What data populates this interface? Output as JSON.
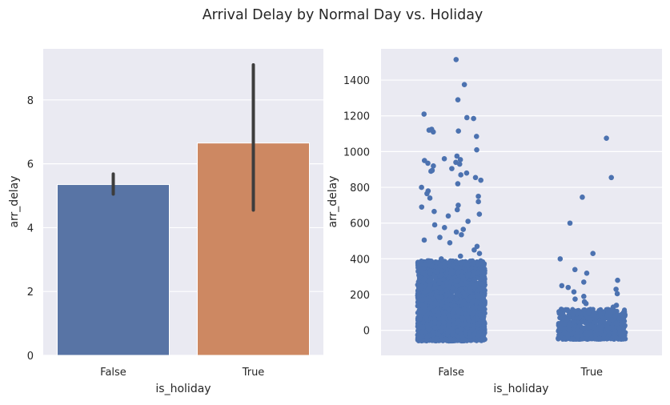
{
  "figure": {
    "title": "Arrival Delay by Normal Day vs. Holiday"
  },
  "chart_data": [
    {
      "type": "bar",
      "xlabel": "is_holiday",
      "ylabel": "arr_delay",
      "categories": [
        "False",
        "True"
      ],
      "values": [
        5.35,
        6.65
      ],
      "error_bars": [
        [
          5.05,
          5.68
        ],
        [
          4.55,
          9.1
        ]
      ],
      "colors": [
        "#5874a5",
        "#cd8862"
      ],
      "ylim": [
        0,
        9.6
      ],
      "yticks": [
        0,
        2,
        4,
        6,
        8
      ],
      "grid": true
    },
    {
      "type": "scatter",
      "subtype": "strip",
      "xlabel": "is_holiday",
      "ylabel": "arr_delay",
      "categories": [
        "False",
        "True"
      ],
      "color": "#4c72b0",
      "ylim": [
        -140,
        1575
      ],
      "yticks": [
        0,
        200,
        400,
        600,
        800,
        1000,
        1200,
        1400
      ],
      "grid": true,
      "series": [
        {
          "category": "False",
          "dense_band": [
            -60,
            390
          ],
          "outliers": [
            1515,
            1375,
            1290,
            1210,
            1190,
            1185,
            1125,
            1120,
            1115,
            1110,
            1085,
            1010,
            975,
            960,
            955,
            950,
            940,
            935,
            930,
            920,
            905,
            895,
            890,
            880,
            870,
            855,
            840,
            820,
            800,
            780,
            765,
            750,
            740,
            720,
            700,
            690,
            675,
            665,
            650,
            640,
            610,
            590,
            575,
            565,
            550,
            535,
            520,
            505,
            490,
            470,
            450,
            430,
            415,
            400
          ]
        },
        {
          "category": "True",
          "dense_band": [
            -50,
            120
          ],
          "outliers": [
            1075,
            855,
            745,
            600,
            430,
            400,
            340,
            320,
            280,
            270,
            250,
            240,
            230,
            215,
            205,
            190,
            175,
            160,
            150,
            140,
            130
          ]
        }
      ]
    }
  ]
}
